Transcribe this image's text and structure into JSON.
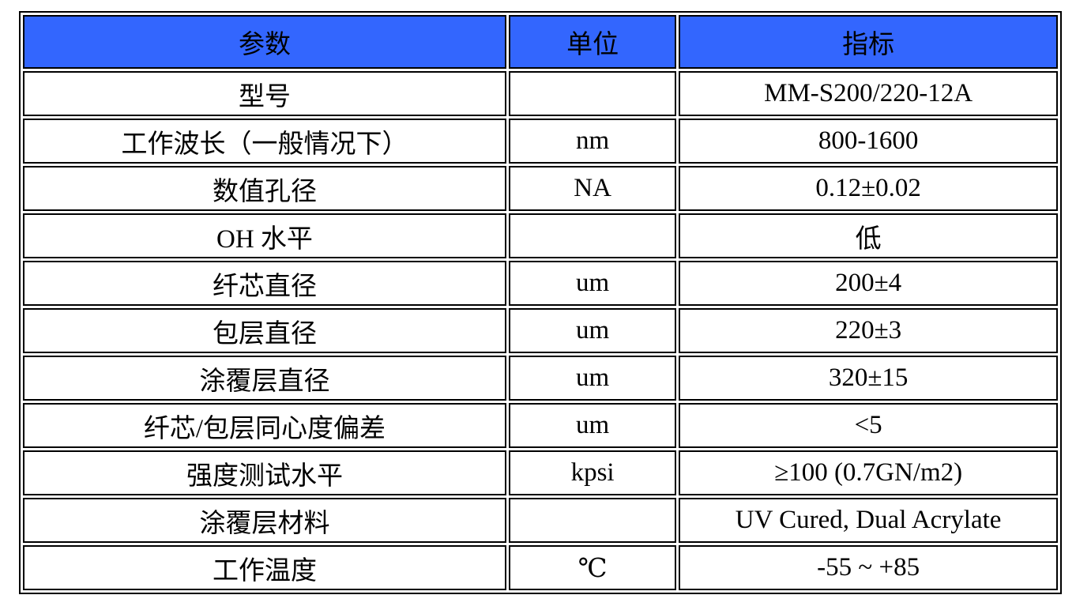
{
  "table": {
    "colors": {
      "header_bg": "#3366fe",
      "header_text": "#000000",
      "border": "#000000",
      "body_text": "#000000"
    },
    "headers": [
      {
        "label": "参数"
      },
      {
        "label": "单位"
      },
      {
        "label": "指标"
      }
    ],
    "rows": [
      {
        "param": "型号",
        "unit": "",
        "value": "MM-S200/220-12A"
      },
      {
        "param": "工作波长（一般情况下）",
        "unit": "nm",
        "value": "800-1600"
      },
      {
        "param": "数值孔径",
        "unit": "NA",
        "value": "0.12±0.02"
      },
      {
        "param": "OH 水平",
        "unit": "",
        "value": "低"
      },
      {
        "param": "纤芯直径",
        "unit": "um",
        "value": "200±4"
      },
      {
        "param": "包层直径",
        "unit": "um",
        "value": "220±3"
      },
      {
        "param": "涂覆层直径",
        "unit": "um",
        "value": "320±15"
      },
      {
        "param": "纤芯/包层同心度偏差",
        "unit": "um",
        "value": "<5"
      },
      {
        "param": "强度测试水平",
        "unit": "kpsi",
        "value": "≥100 (0.7GN/m2)"
      },
      {
        "param": "涂覆层材料",
        "unit": "",
        "value": "UV Cured, Dual Acrylate"
      },
      {
        "param": "工作温度",
        "unit": "℃",
        "value": "-55 ~ +85"
      }
    ]
  }
}
